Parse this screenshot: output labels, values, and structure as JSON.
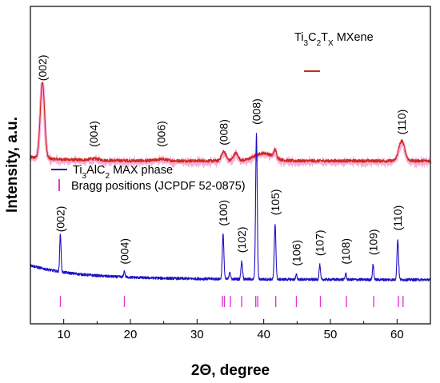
{
  "chart_data": {
    "type": "line",
    "title": "",
    "xlabel": "2Θ, degree",
    "ylabel": "Intensity, a.u.",
    "xlim": [
      5,
      65
    ],
    "xticks": [
      "10",
      "20",
      "30",
      "40",
      "50",
      "60"
    ],
    "grid": false,
    "yticks": "none",
    "series": [
      {
        "name": "Ti₃C₂Tₓ MXene",
        "color": "#cc2a1c",
        "shadow_color": "#f6a0d4",
        "baseline": 1.55,
        "peaks": [
          {
            "label": "(002)",
            "x": 6.8,
            "height": 1.0,
            "width": 0.32
          },
          {
            "label": "(004)",
            "x": 14.5,
            "height": 0.02,
            "width": 0.8
          },
          {
            "label": "(006)",
            "x": 24.6,
            "height": 0.02,
            "width": 0.8
          },
          {
            "label": "(008)",
            "x": 34.0,
            "height": 0.12,
            "width": 0.35
          },
          {
            "label": "",
            "x": 35.8,
            "height": 0.1,
            "width": 0.35
          },
          {
            "label": "",
            "x": 40.0,
            "height": 0.1,
            "width": 1.4
          },
          {
            "label": "",
            "x": 41.7,
            "height": 0.1,
            "width": 0.2
          },
          {
            "label": "(110)",
            "x": 60.7,
            "height": 0.26,
            "width": 0.45
          }
        ]
      },
      {
        "name": "Ti₃AlC₂ MAX phase",
        "color": "#1f10c4",
        "baseline": 0.0,
        "peaks": [
          {
            "label": "(002)",
            "x": 9.5,
            "height": 0.5,
            "width": 0.1
          },
          {
            "label": "(004)",
            "x": 19.1,
            "height": 0.08,
            "width": 0.1
          },
          {
            "label": "(100)",
            "x": 33.9,
            "height": 0.58,
            "width": 0.12
          },
          {
            "label": "",
            "x": 34.9,
            "height": 0.1,
            "width": 0.1
          },
          {
            "label": "(102)",
            "x": 36.7,
            "height": 0.23,
            "width": 0.12
          },
          {
            "label": "(008)",
            "x": 38.9,
            "height": 1.9,
            "width": 0.12
          },
          {
            "label": "(105)",
            "x": 41.7,
            "height": 0.72,
            "width": 0.12
          },
          {
            "label": "(106)",
            "x": 44.9,
            "height": 0.06,
            "width": 0.1
          },
          {
            "label": "(107)",
            "x": 48.4,
            "height": 0.19,
            "width": 0.1
          },
          {
            "label": "(108)",
            "x": 52.3,
            "height": 0.08,
            "width": 0.1
          },
          {
            "label": "(109)",
            "x": 56.4,
            "height": 0.2,
            "width": 0.1
          },
          {
            "label": "(110)",
            "x": 60.1,
            "height": 0.52,
            "width": 0.12
          }
        ]
      }
    ],
    "bragg": {
      "name": "Bragg positions (JCPDF 52-0875)",
      "color": "#e03ad0",
      "positions": [
        9.5,
        19.1,
        33.8,
        34.1,
        35.0,
        36.7,
        38.8,
        39.1,
        41.8,
        44.9,
        48.5,
        52.4,
        56.5,
        60.2,
        60.9
      ]
    },
    "legend": {
      "mxene_label": "Ti₃C₂Tₓ MXene",
      "max_label_main": "Ti",
      "max_label_sub1": "3",
      "max_label_mid": "AlC",
      "max_label_sub2": "2",
      "max_label_end": " MAX phase",
      "mxene_main": "Ti",
      "mxene_sub1": "3",
      "mxene_mid": "C",
      "mxene_sub2": "2",
      "mxene_mid2": "T",
      "mxene_sub3": "X",
      "mxene_end": " MXene"
    }
  }
}
